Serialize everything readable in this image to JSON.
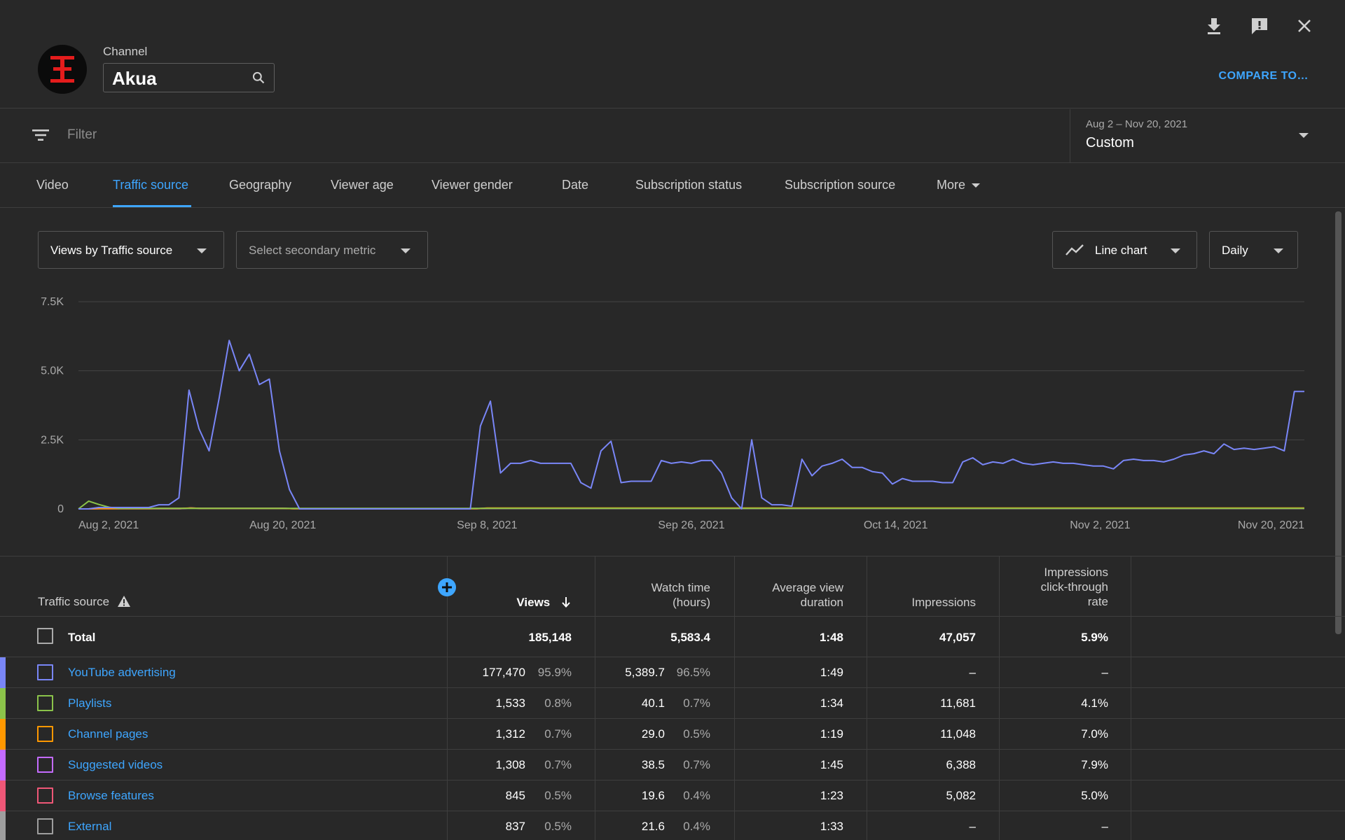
{
  "header": {
    "channel_label": "Channel",
    "channel_name": "Akua",
    "compare_label": "COMPARE TO…"
  },
  "filter": {
    "placeholder": "Filter",
    "date_range": "Aug 2 – Nov 20, 2021",
    "date_mode": "Custom"
  },
  "tabs": [
    "Video",
    "Traffic source",
    "Geography",
    "Viewer age",
    "Viewer gender",
    "Date",
    "Subscription status",
    "Subscription source",
    "More"
  ],
  "active_tab": "Traffic source",
  "controls": {
    "primary_metric": "Views by Traffic source",
    "secondary_metric": "Select secondary metric",
    "chart_type": "Line chart",
    "interval": "Daily"
  },
  "chart_data": {
    "type": "line",
    "ylim": [
      0,
      7500
    ],
    "yticks": [
      "0",
      "2.5K",
      "5.0K",
      "7.5K"
    ],
    "x_tick_labels": [
      "Aug 2, 2021",
      "Aug 20, 2021",
      "Sep 8, 2021",
      "Sep 26, 2021",
      "Oct 14, 2021",
      "Nov 2, 2021",
      "Nov 20, 2021"
    ],
    "series": [
      {
        "name": "YouTube advertising",
        "color": "#7986f7",
        "values": [
          0,
          0,
          50,
          50,
          50,
          50,
          50,
          50,
          150,
          150,
          400,
          4300,
          2900,
          2100,
          4000,
          6100,
          5000,
          5600,
          4500,
          4700,
          2100,
          700,
          0,
          0,
          0,
          0,
          0,
          0,
          0,
          0,
          0,
          0,
          0,
          0,
          0,
          0,
          0,
          0,
          0,
          0,
          3000,
          3900,
          1300,
          1650,
          1650,
          1750,
          1650,
          1650,
          1650,
          1650,
          950,
          750,
          2100,
          2450,
          950,
          1000,
          1000,
          1000,
          1750,
          1650,
          1700,
          1650,
          1750,
          1750,
          1300,
          400,
          0,
          2500,
          400,
          150,
          150,
          100,
          1800,
          1200,
          1550,
          1650,
          1800,
          1500,
          1500,
          1350,
          1300,
          900,
          1100,
          1000,
          1000,
          1000,
          950,
          950,
          1700,
          1850,
          1600,
          1700,
          1650,
          1800,
          1650,
          1600,
          1650,
          1700,
          1650,
          1650,
          1600,
          1550,
          1550,
          1450,
          1750,
          1800,
          1750,
          1750,
          1700,
          1800,
          1950,
          2000,
          2100,
          2000,
          2350,
          2150,
          2200,
          2150,
          2200,
          2250,
          2100,
          4250,
          4250
        ]
      },
      {
        "name": "Playlists",
        "color": "#8bc34a",
        "values": [
          0,
          280,
          160,
          60,
          20,
          20,
          20,
          20,
          20,
          20,
          20,
          20,
          20,
          20,
          20,
          20,
          20,
          20,
          20,
          20,
          20,
          20,
          20,
          20,
          20,
          20,
          20,
          20,
          20,
          20,
          20,
          20,
          20,
          20,
          20,
          20,
          20,
          20,
          20,
          20,
          20,
          20,
          20,
          20,
          20,
          20,
          20,
          20,
          20,
          20,
          20,
          20,
          20,
          20,
          20,
          20,
          20,
          20,
          20,
          20,
          20,
          20,
          20,
          20,
          20,
          20,
          20,
          20,
          20,
          20,
          20,
          20,
          20,
          20,
          20,
          20,
          20,
          20,
          20,
          20,
          20,
          20,
          20,
          20,
          20,
          20,
          20,
          20,
          20,
          20,
          20,
          20,
          20,
          20,
          20,
          20,
          20,
          20,
          20,
          20,
          20,
          20,
          20,
          20,
          20,
          20,
          20,
          20,
          20,
          20,
          20,
          20,
          20,
          20,
          20,
          20,
          20,
          20,
          20,
          20,
          20
        ]
      },
      {
        "name": "Channel pages",
        "color": "#ff9800",
        "values": [
          0,
          0,
          10,
          10,
          10,
          10,
          10,
          10,
          20,
          20,
          20,
          30,
          20,
          20,
          20,
          20,
          20,
          20,
          20,
          20,
          20,
          10,
          10,
          10,
          10,
          10,
          10,
          10,
          10,
          10,
          10,
          10,
          10,
          10,
          10,
          10,
          10,
          10,
          10,
          10,
          30,
          30,
          30,
          30,
          30,
          30,
          30,
          30,
          30,
          30,
          30,
          30,
          30,
          30,
          30,
          30,
          30,
          30,
          30,
          30,
          30,
          30,
          30,
          30,
          30,
          30,
          30,
          30,
          30,
          30,
          30,
          30,
          30,
          30,
          30,
          30,
          30,
          30,
          30,
          30,
          30,
          30,
          30,
          30,
          30,
          30,
          30,
          30,
          30,
          30,
          30,
          30,
          30,
          30,
          30,
          30,
          30,
          30,
          30,
          30,
          30,
          30,
          30,
          30,
          30,
          30,
          30,
          30,
          30,
          30,
          30,
          30,
          30,
          30,
          30,
          30,
          30,
          30,
          30,
          30,
          30
        ]
      },
      {
        "name": "Suggested videos",
        "color": "#c46bff",
        "values": [
          0,
          0,
          10,
          10,
          10,
          10,
          10,
          10,
          10,
          10,
          10,
          30,
          20,
          20,
          20,
          20,
          20,
          20,
          20,
          20,
          20,
          10,
          10,
          10,
          10,
          10,
          10,
          10,
          10,
          10,
          10,
          10,
          10,
          10,
          10,
          10,
          10,
          10,
          10,
          10,
          20,
          20,
          20,
          20,
          20,
          20,
          20,
          20,
          20,
          20,
          20,
          20,
          20,
          20,
          20,
          20,
          20,
          20,
          20,
          20,
          20,
          20,
          20,
          20,
          20,
          20,
          20,
          20,
          20,
          20,
          20,
          20,
          20,
          20,
          20,
          20,
          20,
          20,
          20,
          20,
          20,
          20,
          20,
          20,
          20,
          20,
          20,
          20,
          20,
          20,
          20,
          20,
          20,
          20,
          20,
          20,
          20,
          20,
          20,
          20,
          20,
          20,
          20,
          20,
          20,
          20,
          20,
          20,
          20,
          20,
          20,
          20,
          20,
          20,
          20,
          20,
          20,
          20,
          20,
          20,
          20
        ]
      },
      {
        "name": "Browse features",
        "color": "#ef5777",
        "values": [
          0,
          0,
          10,
          10,
          10,
          10,
          10,
          10,
          10,
          10,
          10,
          30,
          20,
          20,
          20,
          20,
          20,
          20,
          20,
          20,
          20,
          10,
          10,
          10,
          10,
          10,
          10,
          10,
          10,
          10,
          10,
          10,
          10,
          10,
          10,
          10,
          10,
          10,
          10,
          10,
          20,
          20,
          20,
          20,
          20,
          20,
          20,
          20,
          20,
          20,
          20,
          20,
          20,
          20,
          20,
          20,
          20,
          20,
          20,
          20,
          20,
          20,
          20,
          20,
          20,
          20,
          20,
          20,
          20,
          20,
          20,
          20,
          20,
          20,
          20,
          20,
          20,
          20,
          20,
          20,
          20,
          20,
          20,
          20,
          20,
          20,
          20,
          20,
          20,
          20,
          20,
          20,
          20,
          20,
          20,
          20,
          20,
          20,
          20,
          20,
          20,
          20,
          20,
          20,
          20,
          20,
          20,
          20,
          20,
          20,
          20,
          20,
          20,
          20,
          20,
          20,
          20,
          20,
          20,
          20,
          20
        ]
      }
    ]
  },
  "table": {
    "headers": {
      "source": "Traffic source",
      "views": "Views",
      "watch_l1": "Watch time",
      "watch_l2": "(hours)",
      "avg_l1": "Average view",
      "avg_l2": "duration",
      "impressions": "Impressions",
      "ctr_l1": "Impressions",
      "ctr_l2": "click-through",
      "ctr_l3": "rate"
    },
    "total": {
      "label": "Total",
      "views": "185,148",
      "watch": "5,583.4",
      "avg": "1:48",
      "impressions": "47,057",
      "ctr": "5.9%"
    },
    "rows": [
      {
        "source": "YouTube advertising",
        "color": "#7986f7",
        "views": "177,470",
        "views_pct": "95.9%",
        "watch": "5,389.7",
        "watch_pct": "96.5%",
        "avg": "1:49",
        "impressions": "–",
        "ctr": "–"
      },
      {
        "source": "Playlists",
        "color": "#8bc34a",
        "views": "1,533",
        "views_pct": "0.8%",
        "watch": "40.1",
        "watch_pct": "0.7%",
        "avg": "1:34",
        "impressions": "11,681",
        "ctr": "4.1%"
      },
      {
        "source": "Channel pages",
        "color": "#ff9800",
        "views": "1,312",
        "views_pct": "0.7%",
        "watch": "29.0",
        "watch_pct": "0.5%",
        "avg": "1:19",
        "impressions": "11,048",
        "ctr": "7.0%"
      },
      {
        "source": "Suggested videos",
        "color": "#c46bff",
        "views": "1,308",
        "views_pct": "0.7%",
        "watch": "38.5",
        "watch_pct": "0.7%",
        "avg": "1:45",
        "impressions": "6,388",
        "ctr": "7.9%"
      },
      {
        "source": "Browse features",
        "color": "#ef5777",
        "views": "845",
        "views_pct": "0.5%",
        "watch": "19.6",
        "watch_pct": "0.4%",
        "avg": "1:23",
        "impressions": "5,082",
        "ctr": "5.0%"
      },
      {
        "source": "External",
        "color": "#9e9e9e",
        "views": "837",
        "views_pct": "0.5%",
        "watch": "21.6",
        "watch_pct": "0.4%",
        "avg": "1:33",
        "impressions": "–",
        "ctr": "–"
      }
    ]
  }
}
